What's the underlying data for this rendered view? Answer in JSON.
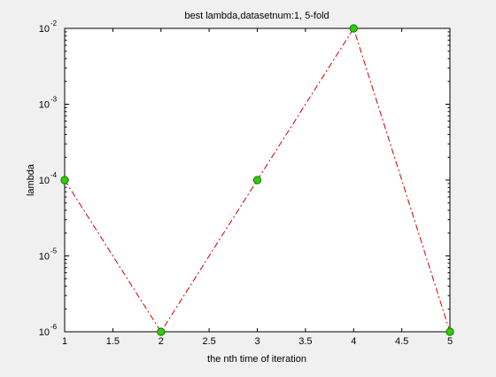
{
  "chart_data": {
    "type": "line",
    "title": "best lambda,datasetnum:1, 5-fold",
    "xlabel": "the nth time of iteration",
    "ylabel": "lambda",
    "x": [
      1,
      2,
      3,
      4,
      5
    ],
    "series": [
      {
        "name": "best lambda",
        "values": [
          0.0001,
          1e-06,
          0.0001,
          0.01,
          1e-06
        ]
      }
    ],
    "xlim": [
      1,
      5
    ],
    "ylim": [
      1e-06,
      0.01
    ],
    "yscale": "log",
    "xticks": [
      1,
      1.5,
      2,
      2.5,
      3,
      3.5,
      4,
      4.5,
      5
    ],
    "xtick_labels": [
      "1",
      "1.5",
      "2",
      "2.5",
      "3",
      "3.5",
      "4",
      "4.5",
      "5"
    ],
    "yticks": [
      -6,
      -5,
      -4,
      -3,
      -2
    ],
    "ytick_base": "10",
    "grid": false,
    "line_style": "dash-dot",
    "line_color": "#cc0000",
    "marker": "circle",
    "marker_fill": "#33cc00",
    "marker_edge": "#006600"
  }
}
